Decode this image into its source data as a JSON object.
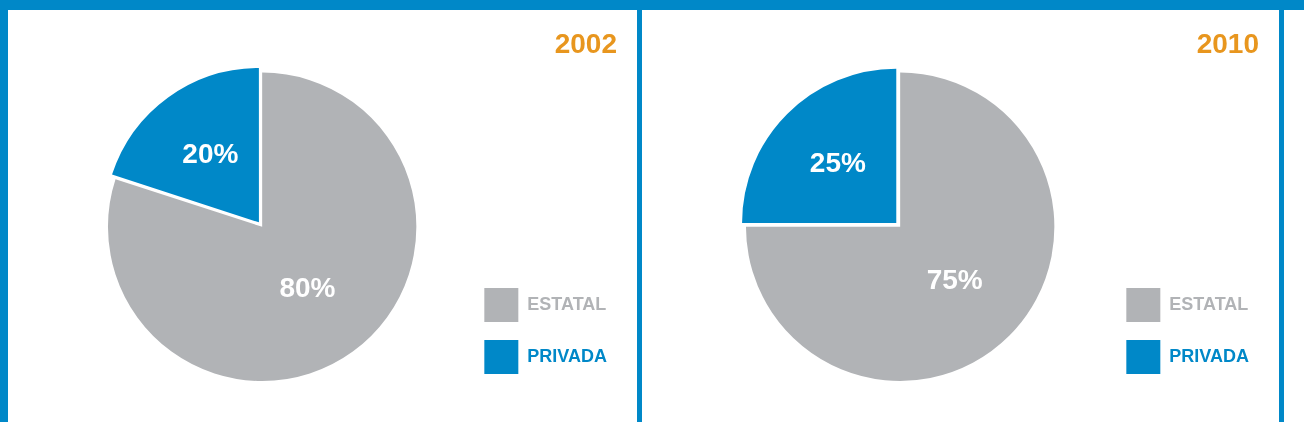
{
  "chart_data": [
    {
      "type": "pie",
      "title": "2002",
      "categories": [
        "ESTATAL",
        "PRIVADA"
      ],
      "values": [
        80,
        20
      ],
      "value_labels": [
        "80%",
        "20%"
      ],
      "colors": [
        "#b1b3b6",
        "#0088c8"
      ],
      "legend": "bottom right"
    },
    {
      "type": "pie",
      "title": "2010",
      "categories": [
        "ESTATAL",
        "PRIVADA"
      ],
      "values": [
        75,
        25
      ],
      "value_labels": [
        "75%",
        "25%"
      ],
      "colors": [
        "#b1b3b6",
        "#0088c8"
      ],
      "legend": "bottom right"
    }
  ]
}
